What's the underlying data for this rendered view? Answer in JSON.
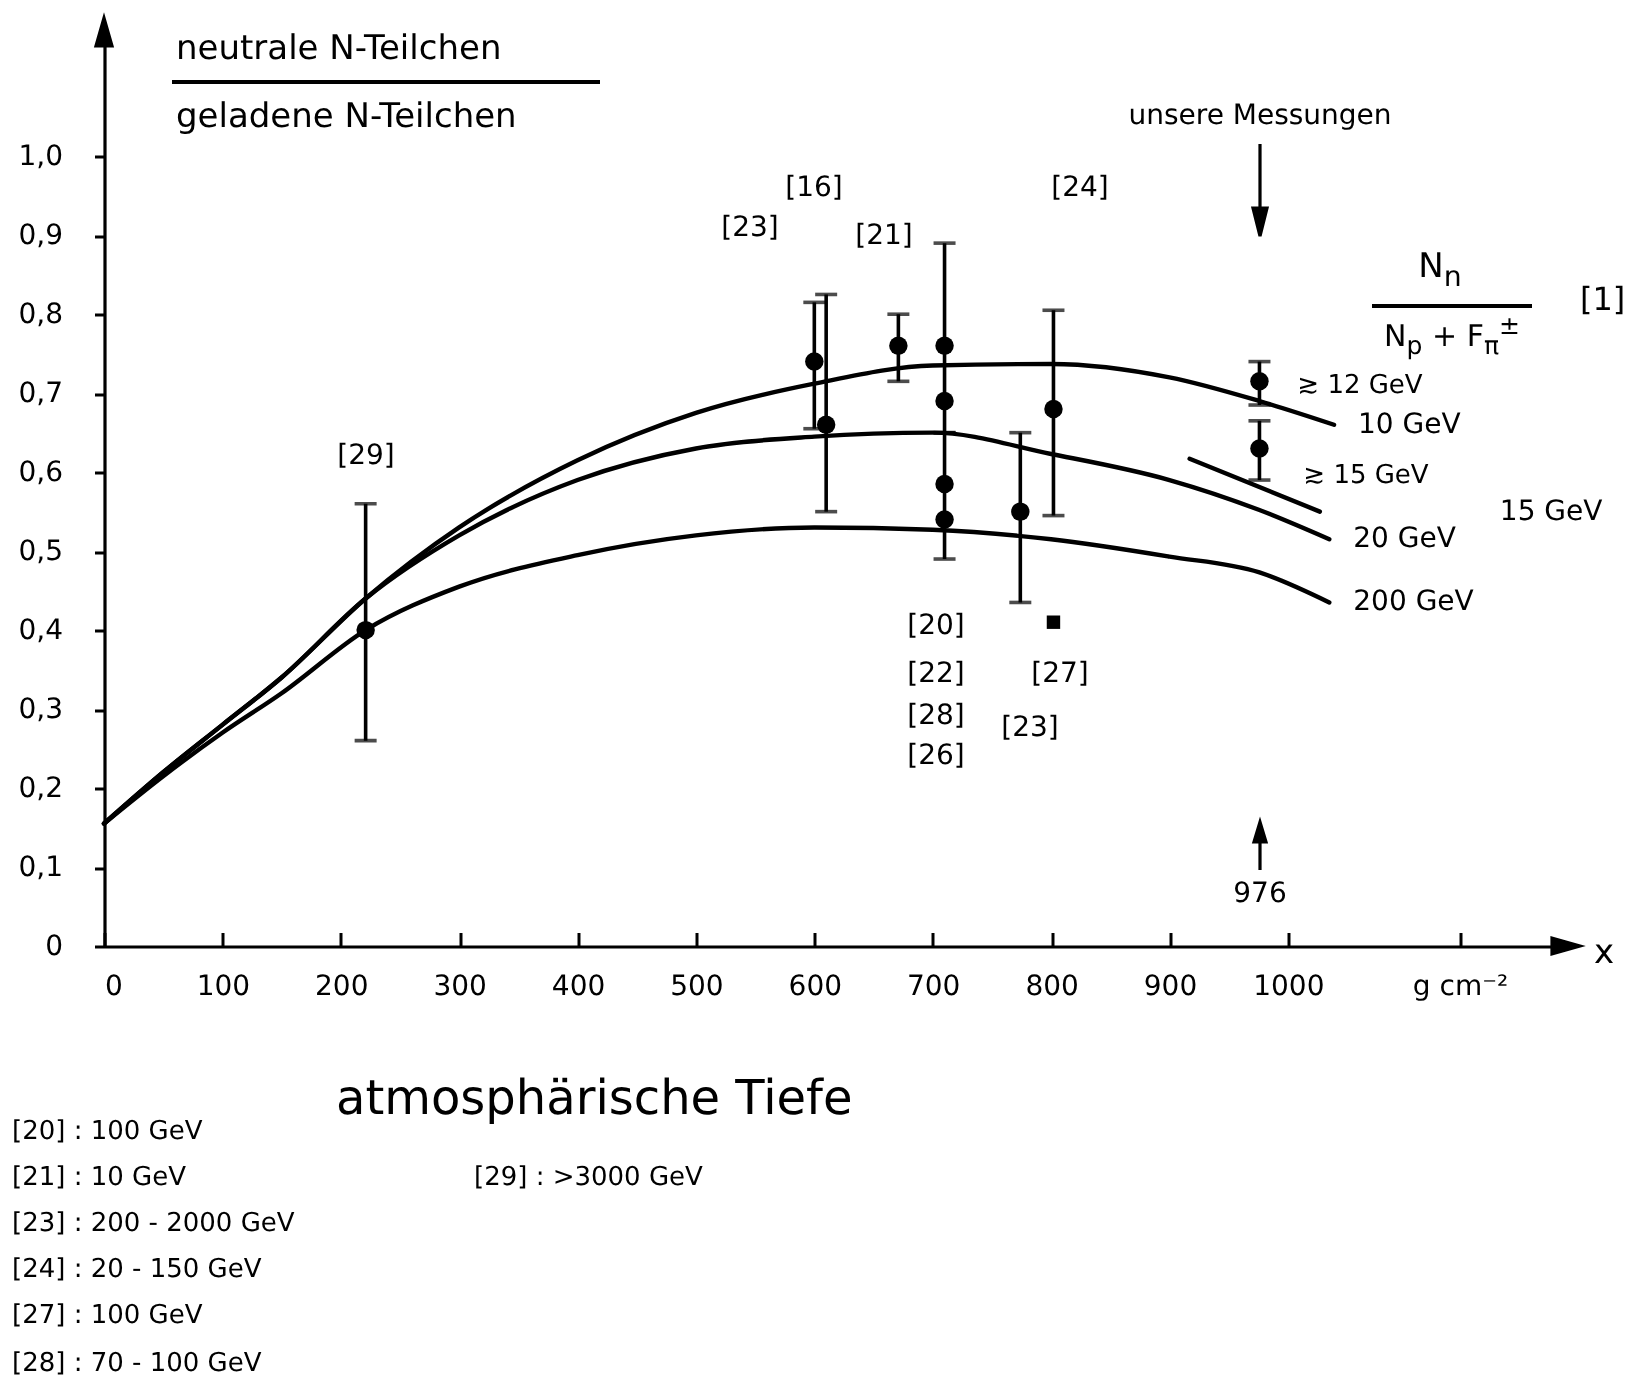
{
  "chart_data": {
    "type": "line",
    "title": "neutrale N-Teilchen",
    "subtitle": "geladene N-Teilchen",
    "xlabel": "atmosphärische Tiefe",
    "xlim": [
      0,
      1240
    ],
    "ylim": [
      0,
      1.17
    ],
    "xticks": [
      0,
      100,
      200,
      300,
      400,
      500,
      600,
      700,
      800,
      900,
      1000,
      {
        "value": 1145,
        "label": "g cm⁻²"
      }
    ],
    "yticks": [
      0,
      {
        "value": 0.1,
        "label": "0,1"
      },
      {
        "value": 0.2,
        "label": "0,2"
      },
      {
        "value": 0.3,
        "label": "0,3"
      },
      {
        "value": 0.4,
        "label": "0,4"
      },
      {
        "value": 0.5,
        "label": "0,5"
      },
      {
        "value": 0.6,
        "label": "0,6"
      },
      {
        "value": 0.7,
        "label": "0,7"
      },
      {
        "value": 0.8,
        "label": "0,8"
      },
      {
        "value": 0.9,
        "label": "0,9"
      },
      {
        "value": 1.0,
        "label": "1,0"
      }
    ],
    "marker": "none",
    "line_style": "solid",
    "series": [
      {
        "name": "10 GeV",
        "color": "#000000",
        "x": [
          0,
          50,
          100,
          150,
          221,
          300,
          400,
          500,
          600,
          700,
          800,
          900,
          976,
          1039
        ],
        "values": [
          0.155,
          0.22,
          0.28,
          0.34,
          0.44,
          0.53,
          0.615,
          0.675,
          0.712,
          0.735,
          0.737,
          0.72,
          0.69,
          0.66
        ]
      },
      {
        "name": "20 GeV",
        "color": "#000000",
        "x": [
          0,
          50,
          100,
          150,
          221,
          300,
          400,
          500,
          600,
          700,
          800,
          900,
          976,
          1035
        ],
        "values": [
          0.155,
          0.22,
          0.28,
          0.34,
          0.44,
          0.52,
          0.59,
          0.63,
          0.645,
          0.65,
          0.623,
          0.59,
          0.552,
          0.515
        ]
      },
      {
        "name": "15 GeV",
        "color": "#000000",
        "x": [
          917,
          1027
        ],
        "values": [
          0.617,
          0.55
        ]
      },
      {
        "name": "200 GeV",
        "color": "#000000",
        "x": [
          0,
          50,
          100,
          150,
          221,
          300,
          400,
          500,
          600,
          700,
          800,
          900,
          976,
          1035
        ],
        "values": [
          0.155,
          0.215,
          0.27,
          0.32,
          0.4,
          0.455,
          0.495,
          0.52,
          0.53,
          0.527,
          0.515,
          0.493,
          0.473,
          0.435
        ]
      },
      {
        "type": "scatter",
        "marker": "circle",
        "color": "#000000",
        "x": [
          221,
          600,
          610,
          671,
          710,
          710,
          710,
          710,
          774,
          802
        ],
        "values": [
          0.4,
          0.74,
          0.66,
          0.76,
          0.76,
          0.69,
          0.585,
          0.54,
          0.55,
          0.68
        ],
        "errors": [
          [
            0.26,
            0.56
          ],
          [
            0.655,
            0.815
          ],
          [
            0.55,
            0.825
          ],
          [
            0.715,
            0.8
          ],
          [
            0.65,
            0.89
          ],
          null,
          [
            0.49,
            0.65
          ],
          null,
          [
            0.435,
            0.65
          ],
          [
            0.545,
            0.805
          ]
        ]
      },
      {
        "type": "scatter",
        "marker": "circle",
        "color": "#000000",
        "x": [
          976,
          976
        ],
        "values": [
          0.715,
          0.63
        ],
        "errors": [
          [
            0.685,
            0.74
          ],
          [
            0.59,
            0.665
          ]
        ]
      },
      {
        "type": "scatter",
        "marker": "square",
        "color": "#000000",
        "x": [
          802
        ],
        "values": [
          0.41
        ]
      }
    ],
    "annotations": [
      "[29]",
      "[23]",
      "[16]",
      "[21]",
      "[24]",
      "[20]",
      "[22]",
      "[28]",
      "[26]",
      "[27]",
      "[23]",
      "unsere Messungen",
      "976",
      "≳ 12 GeV",
      "≳ 15 GeV",
      "x",
      "N$_{n}$",
      "N$_{p}$ + F$_{π}$$^{±}$",
      "[1]",
      "[20] : 100 GeV",
      "[21] : 10 GeV",
      "[23] : 200 - 2000 GeV",
      "[24] :  20 - 150 GeV",
      "[27] : 100 GeV",
      "[28] : 70 - 100 GeV",
      "[29] : >3000 GeV"
    ]
  }
}
